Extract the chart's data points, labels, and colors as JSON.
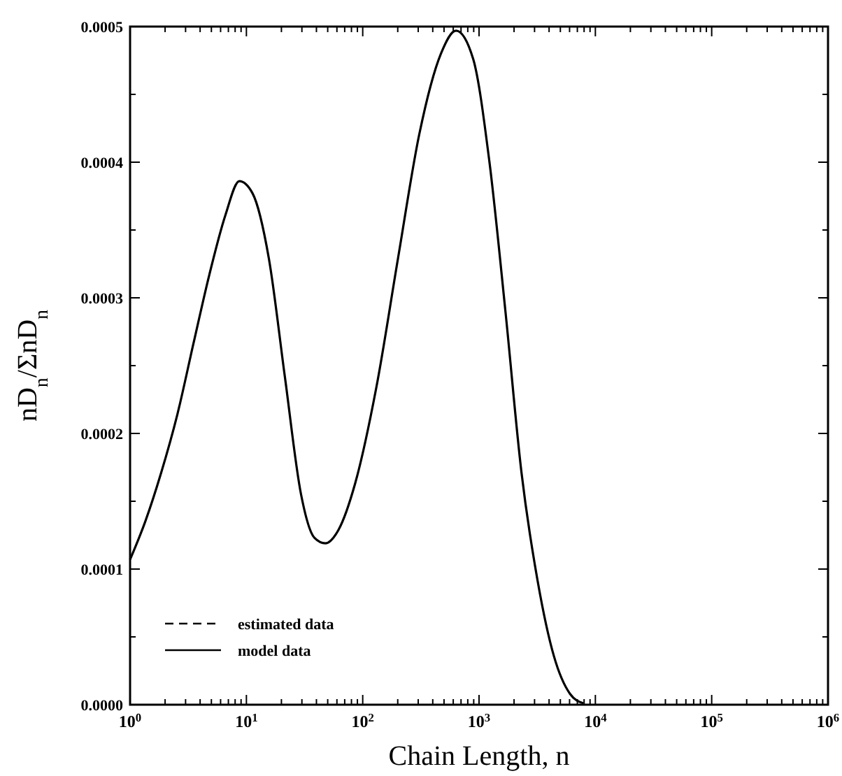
{
  "chart_data": {
    "type": "line",
    "xlabel": "Chain Length, n",
    "ylabel": "nD$_{n}$/ΣnD$_{n}$",
    "log": "x",
    "legend": "bottom left",
    "grid": false,
    "xlim": [
      1,
      1000000
    ],
    "ylim": [
      0,
      0.0005
    ],
    "xticks": [
      {
        "value": 1,
        "label": "10$^{0}$"
      },
      {
        "value": 10,
        "label": "10$^{1}$"
      },
      {
        "value": 100,
        "label": "10$^{2}$"
      },
      {
        "value": 1000,
        "label": "10$^{3}$"
      },
      {
        "value": 10000,
        "label": "10$^{4}$"
      },
      {
        "value": 100000,
        "label": "10$^{5}$"
      },
      {
        "value": 1000000,
        "label": "10$^{6}$"
      },
      {
        "value": 2,
        "label": null
      },
      {
        "value": 3,
        "label": null
      },
      {
        "value": 4,
        "label": null
      },
      {
        "value": 5,
        "label": null
      },
      {
        "value": 6,
        "label": null
      },
      {
        "value": 7,
        "label": null
      },
      {
        "value": 8,
        "label": null
      },
      {
        "value": 9,
        "label": null
      },
      {
        "value": 20,
        "label": null
      },
      {
        "value": 30,
        "label": null
      },
      {
        "value": 40,
        "label": null
      },
      {
        "value": 50,
        "label": null
      },
      {
        "value": 60,
        "label": null
      },
      {
        "value": 70,
        "label": null
      },
      {
        "value": 80,
        "label": null
      },
      {
        "value": 90,
        "label": null
      },
      {
        "value": 200,
        "label": null
      },
      {
        "value": 300,
        "label": null
      },
      {
        "value": 400,
        "label": null
      },
      {
        "value": 500,
        "label": null
      },
      {
        "value": 600,
        "label": null
      },
      {
        "value": 700,
        "label": null
      },
      {
        "value": 800,
        "label": null
      },
      {
        "value": 900,
        "label": null
      },
      {
        "value": 2000,
        "label": null
      },
      {
        "value": 3000,
        "label": null
      },
      {
        "value": 4000,
        "label": null
      },
      {
        "value": 5000,
        "label": null
      },
      {
        "value": 6000,
        "label": null
      },
      {
        "value": 7000,
        "label": null
      },
      {
        "value": 8000,
        "label": null
      },
      {
        "value": 9000,
        "label": null
      },
      {
        "value": 20000,
        "label": null
      },
      {
        "value": 30000,
        "label": null
      },
      {
        "value": 40000,
        "label": null
      },
      {
        "value": 50000,
        "label": null
      },
      {
        "value": 60000,
        "label": null
      },
      {
        "value": 70000,
        "label": null
      },
      {
        "value": 80000,
        "label": null
      },
      {
        "value": 90000,
        "label": null
      },
      {
        "value": 200000,
        "label": null
      },
      {
        "value": 300000,
        "label": null
      },
      {
        "value": 400000,
        "label": null
      },
      {
        "value": 500000,
        "label": null
      },
      {
        "value": 600000,
        "label": null
      },
      {
        "value": 700000,
        "label": null
      },
      {
        "value": 800000,
        "label": null
      },
      {
        "value": 900000,
        "label": null
      }
    ],
    "yticks": [
      {
        "value": 0,
        "label": "0.0000"
      },
      {
        "value": 0.0001,
        "label": "0.0001"
      },
      {
        "value": 0.0002,
        "label": "0.0002"
      },
      {
        "value": 0.0003,
        "label": "0.0003"
      },
      {
        "value": 0.0004,
        "label": "0.0004"
      },
      {
        "value": 0.0005,
        "label": "0.0005"
      },
      {
        "value": 5e-05,
        "label": null
      },
      {
        "value": 0.00015,
        "label": null
      },
      {
        "value": 0.00025,
        "label": null
      },
      {
        "value": 0.00035,
        "label": null
      },
      {
        "value": 0.00045,
        "label": null
      }
    ],
    "x": [
      1,
      1.35,
      1.85,
      2.55,
      3.5,
      4.8,
      6.6,
      8.7,
      11.3,
      15.6,
      21.4,
      29.5,
      38.5,
      47.7,
      62,
      86,
      131,
      201,
      307,
      470,
      634,
      891,
      1225,
      1686,
      2318,
      3193,
      4395,
      6053,
      7890
    ],
    "series": [
      {
        "name": "estimated data",
        "color": "#000000",
        "line_style": "dashed",
        "values": [
          null,
          null,
          null,
          null,
          null,
          null,
          null,
          null,
          null,
          null,
          null,
          null,
          null,
          null,
          null,
          null,
          null,
          null,
          null,
          null,
          null,
          null,
          null,
          null,
          null,
          null,
          null,
          null,
          null
        ]
      },
      {
        "name": "model data",
        "color": "#000000",
        "line_style": "solid",
        "values": [
          0.000107,
          0.000135,
          0.000171,
          0.000214,
          0.000266,
          0.000317,
          0.000361,
          0.000386,
          0.000377,
          0.000329,
          0.000242,
          0.000155,
          0.000123,
          0.000119,
          0.000129,
          0.000163,
          0.000234,
          0.000329,
          0.000421,
          0.00048,
          0.000497,
          0.000476,
          0.000401,
          0.00029,
          0.000171,
          9.1e-05,
          3.6e-05,
          8e-06,
          1e-06
        ]
      }
    ]
  }
}
